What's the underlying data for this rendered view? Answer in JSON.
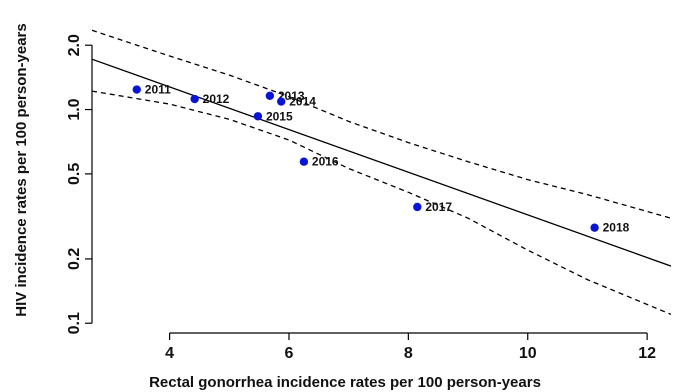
{
  "chart_data": {
    "type": "scatter",
    "title": "",
    "xlabel": "Rectal gonorrhea incidence rates per 100 person-years",
    "ylabel": "HIV incidence rates per 100 person-years",
    "xlim": [
      2.7,
      12.4
    ],
    "ylim": [
      0.09,
      2.8
    ],
    "y_scale": "log",
    "x_ticks": [
      4,
      6,
      8,
      10,
      12
    ],
    "x_tick_labels": [
      "4",
      "6",
      "8",
      "10",
      "12"
    ],
    "y_ticks": [
      0.1,
      0.2,
      0.5,
      1.0,
      2.0
    ],
    "y_tick_labels": [
      "0.1",
      "0.2",
      "0.5",
      "1.0",
      "2.0"
    ],
    "points": [
      {
        "label": "2011",
        "x": 3.45,
        "y": 1.24
      },
      {
        "label": "2012",
        "x": 4.42,
        "y": 1.12
      },
      {
        "label": "2013",
        "x": 5.68,
        "y": 1.16
      },
      {
        "label": "2014",
        "x": 5.87,
        "y": 1.09
      },
      {
        "label": "2015",
        "x": 5.48,
        "y": 0.93
      },
      {
        "label": "2016",
        "x": 6.25,
        "y": 0.57
      },
      {
        "label": "2017",
        "x": 8.15,
        "y": 0.35
      },
      {
        "label": "2018",
        "x": 11.12,
        "y": 0.28
      }
    ],
    "fit_line": {
      "x": [
        2.7,
        12.4
      ],
      "y": [
        1.72,
        0.185
      ]
    },
    "ci_upper": {
      "x": [
        2.7,
        4,
        5,
        6,
        7,
        8,
        9,
        10,
        11,
        12.4
      ],
      "y": [
        2.35,
        1.78,
        1.45,
        1.15,
        0.88,
        0.7,
        0.57,
        0.47,
        0.4,
        0.31
      ]
    },
    "ci_lower": {
      "x": [
        2.7,
        4,
        5,
        6,
        7,
        8,
        9,
        10,
        11,
        12.4
      ],
      "y": [
        1.22,
        1.06,
        0.9,
        0.72,
        0.53,
        0.41,
        0.31,
        0.22,
        0.16,
        0.11
      ]
    },
    "point_color": "#0a14d6",
    "line_color": "#000000",
    "grid": false,
    "legend": "none"
  }
}
